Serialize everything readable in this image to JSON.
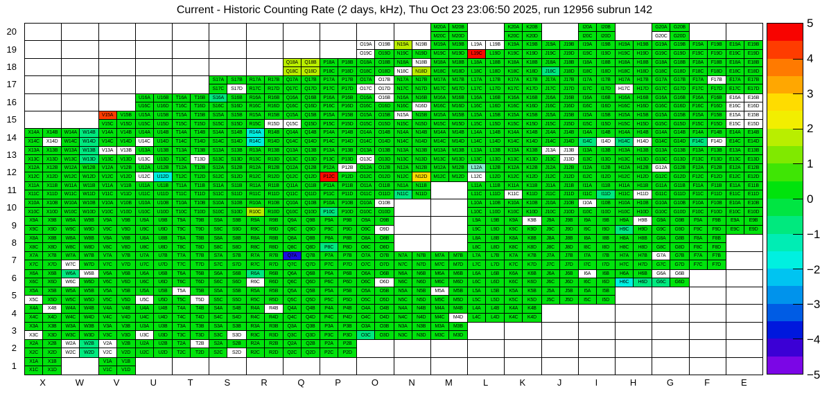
{
  "title": "Current - Historic Counting Rate (2 days, kHz), Thu Oct 23 23:06:50 2025, run 12956 subrun 142",
  "chart_data": {
    "type": "heatmap",
    "title": "Current - Historic Counting Rate (2 days, kHz), Thu Oct 23 23:06:50 2025, run 12956 subrun 142",
    "x_categories": [
      "X",
      "W",
      "V",
      "U",
      "T",
      "S",
      "R",
      "Q",
      "P",
      "O",
      "N",
      "M",
      "L",
      "K",
      "J",
      "I",
      "H",
      "G",
      "F",
      "E"
    ],
    "y_categories": [
      20,
      19,
      18,
      17,
      16,
      15,
      14,
      13,
      12,
      11,
      10,
      9,
      8,
      7,
      6,
      5,
      4,
      3,
      2,
      1
    ],
    "subcells": [
      "A",
      "B",
      "C",
      "D"
    ],
    "label_format": "{column}{row}{subcell}",
    "colorbar": {
      "min": -5,
      "max": 5,
      "ticks": [
        "5",
        "4",
        "3",
        "2",
        "1",
        "0",
        "−1",
        "−2",
        "−3",
        "−4",
        "−5"
      ],
      "bands_top_to_bottom": [
        "#f80300",
        "#fe3c00",
        "#ff7a00",
        "#ffa701",
        "#ffdc00",
        "#f2ee00",
        "#b9ee00",
        "#80e900",
        "#3fe505",
        "#00e30c",
        "#00e542",
        "#00e97e",
        "#00edb4",
        "#00f0e0",
        "#00c4f1",
        "#0093ec",
        "#005ce4",
        "#0018dd",
        "#3b00d5",
        "#7b06e6"
      ]
    },
    "palette": {
      "g": "#00e30c",
      "m": "#00e97e",
      "c": "#00f0e0",
      "l": "#86eecf",
      "h": "#b9ee00",
      "y": "#ffdc00",
      "r": "#fb0b00",
      "v": "#fe3c00",
      "b": "#1c0ee0",
      "w": "#ffffff"
    },
    "palette_values": {
      "g": 0.25,
      "m": -0.75,
      "c": -1.75,
      "l": -1.25,
      "h": 1.75,
      "y": 2.75,
      "r": 4.75,
      "v": 4.25,
      "b": -3.75,
      "w": null
    },
    "cells": {
      "X": {
        "14": "gggw",
        "13": "gggg",
        "12": "gggg",
        "11": "gggg",
        "10": "gggg",
        "9": "gggg",
        "8": "gggg",
        "7": "gggg",
        "6": "gggg",
        "5": "ggwg",
        "4": "gwgg",
        "3": "ggwg",
        "2": "gggg",
        "1": "gggg"
      },
      "W": {
        "14": "gmgm",
        "13": "gmgm",
        "12": "gggg",
        "11": "gggg",
        "10": "gggg",
        "9": "gggg",
        "8": "gggg",
        "7": "ggwg",
        "6": "mwwg",
        "5": "gggg",
        "4": "gggg",
        "3": "gggg",
        "2": "wmwm"
      },
      "V": {
        "15": "vggg",
        "14": "gggg",
        "13": "wwgg",
        "12": "gggg",
        "11": "gggg",
        "10": "gggg",
        "9": "gggg",
        "8": "gggg",
        "7": "gggg",
        "6": "gggg",
        "5": "gggg",
        "4": "gggg",
        "3": "gggg",
        "2": "wgwg",
        "1": "gggg"
      },
      "U": {
        "16": "gggg",
        "15": "gggg",
        "14": "ggwg",
        "13": "ggwg",
        "12": "ggwc",
        "11": "gggg",
        "10": "gggg",
        "9": "gggg",
        "8": "gggg",
        "7": "gggg",
        "6": "gggg",
        "5": "ggwg",
        "4": "gggg",
        "3": "ggwg",
        "2": "gggg"
      },
      "T": {
        "16": "gggg",
        "15": "gggg",
        "14": "gggg",
        "13": "gggw",
        "12": "gggg",
        "11": "gggg",
        "10": "gggg",
        "9": "gggg",
        "8": "gggg",
        "7": "gggg",
        "6": "gggg",
        "5": "wggw",
        "4": "gggg",
        "3": "gggg",
        "2": "gwgg"
      },
      "S": {
        "17": "gggw",
        "16": "mggg",
        "15": "gggg",
        "14": "gggg",
        "13": "gggg",
        "12": "gggg",
        "11": "gggg",
        "10": "gggg",
        "9": "gggg",
        "8": "gggg",
        "7": "gggg",
        "6": "gggg",
        "5": "gggg",
        "4": "gggg",
        "3": "gggw",
        "2": "gggw"
      },
      "R": {
        "17": "gggg",
        "16": "gggg",
        "15": "gggw",
        "14": "cgcg",
        "13": "gggg",
        "12": "gggg",
        "11": "gggg",
        "10": "gghg",
        "9": "gggg",
        "8": "gggg",
        "7": "gggg",
        "6": "mgwg",
        "5": "gggg",
        "4": "gwgg",
        "3": "gggg",
        "2": "gggg"
      },
      "Q": {
        "18": "hhhh",
        "17": "gggg",
        "16": "gggg",
        "15": "ggwg",
        "14": "gggg",
        "13": "gggg",
        "12": "gggg",
        "11": "gggg",
        "10": "gggg",
        "9": "gggg",
        "8": "gggg",
        "7": "bggg",
        "6": "gggg",
        "5": "gggg",
        "4": "gggg",
        "3": "gggg",
        "2": "gggg"
      },
      "P": {
        "18": "gggg",
        "17": "gggg",
        "16": "gggg",
        "15": "gggg",
        "14": "gggg",
        "13": "gggg",
        "12": "gwrg",
        "11": "gggg",
        "10": "ggmg",
        "9": "gggg",
        "8": "ggmg",
        "7": "gggg",
        "6": "gggg",
        "5": "gggg",
        "4": "gggg",
        "3": "gggg",
        "2": "gggg"
      },
      "O": {
        "19": "wwwg",
        "18": "gggg",
        "17": "gwww",
        "16": "gwgg",
        "15": "gggg",
        "14": "gggg",
        "13": "ggwg",
        "12": "gggg",
        "11": "gggg",
        "10": "gwgg",
        "9": "gggw",
        "8": "gggg",
        "7": "gggg",
        "6": "gggw",
        "5": "gggg",
        "4": "gggg",
        "3": "ggmg"
      },
      "N": {
        "19": "hwgg",
        "18": "gwwh",
        "17": "gggg",
        "16": "gggw",
        "15": "wggg",
        "14": "gggg",
        "13": "gggg",
        "12": "gggy",
        "11": "ggmg",
        "7": "gggg",
        "6": "gggg",
        "5": "gggg",
        "4": "gggg",
        "3": "gggg"
      },
      "M": {
        "20": "gggg",
        "19": "gggg",
        "18": "gggg",
        "17": "gggg",
        "16": "gggg",
        "15": "gggg",
        "14": "gggg",
        "13": "gggg",
        "12": "gggg",
        "7": "gggg",
        "6": "gggg",
        "5": "wggg",
        "4": "gggw",
        "3": "gggg"
      },
      "L": {
        "19": "wwrg",
        "18": "gggg",
        "17": "gggg",
        "16": "gggg",
        "15": "gggg",
        "14": "gggg",
        "13": "gggg",
        "12": "lgwg",
        "11": "gggg",
        "10": "gggg",
        "9": "gggg",
        "8": "gggg",
        "7": "gggg",
        "6": "gggg",
        "5": "gggg",
        "4": "gggg"
      },
      "K": {
        "20": "gggg",
        "19": "gggg",
        "18": "gggg",
        "17": "gggg",
        "16": "gggg",
        "15": "gggg",
        "14": "gggg",
        "13": "gggg",
        "12": "gggg",
        "11": "ggwg",
        "10": "gggg",
        "9": "gwgg",
        "8": "gggg",
        "7": "gggg",
        "6": "gggg",
        "5": "gggg",
        "4": "gggg"
      },
      "J": {
        "19": "gggg",
        "18": "ggmg",
        "17": "gggg",
        "16": "gggg",
        "15": "gggg",
        "14": "gggg",
        "13": "wwgw",
        "12": "gggg",
        "11": "gggg",
        "10": "gggg",
        "9": "gggg",
        "8": "gggg",
        "7": "gggg",
        "6": "gggg",
        "5": "gggg"
      },
      "I": {
        "20": "gggg",
        "19": "gggg",
        "18": "gggg",
        "17": "gggg",
        "16": "gggg",
        "15": "gggg",
        "14": "ggmw",
        "13": "gggg",
        "12": "gggg",
        "11": "gggm",
        "10": "wggg",
        "9": "gggg",
        "8": "gggg",
        "7": "gggg",
        "6": "wggg",
        "5": "gggg"
      },
      "H": {
        "19": "gggg",
        "18": "gggg",
        "17": "ggwg",
        "16": "gggg",
        "15": "gggg",
        "14": "ggmw",
        "13": "gggg",
        "12": "gggg",
        "11": "gggw",
        "10": "gggg",
        "9": "gwmg",
        "8": "gggg",
        "7": "gggg",
        "6": "ggcm"
      },
      "G": {
        "20": "ggwg",
        "19": "gggg",
        "18": "gggg",
        "17": "gggg",
        "16": "gggg",
        "15": "gggg",
        "14": "gggg",
        "13": "gggg",
        "12": "wggg",
        "11": "gggg",
        "10": "gggg",
        "9": "gggg",
        "8": "gggg",
        "7": "wggg",
        "6": "wwmg"
      },
      "F": {
        "19": "gggg",
        "18": "gggg",
        "17": "gwgg",
        "16": "gggg",
        "15": "gggg",
        "14": "ggmw",
        "13": "gggg",
        "12": "gggg",
        "11": "gggg",
        "10": "gggg",
        "9": "gggg",
        "8": "gggg",
        "7": "gggg"
      },
      "E": {
        "19": "gggg",
        "18": "gggg",
        "17": "gggg",
        "16": "wwww",
        "15": "wwww",
        "14": "gggg",
        "13": "gggg",
        "12": "gggg",
        "11": "gggg",
        "10": "gggg",
        "9": "gggg"
      }
    }
  }
}
